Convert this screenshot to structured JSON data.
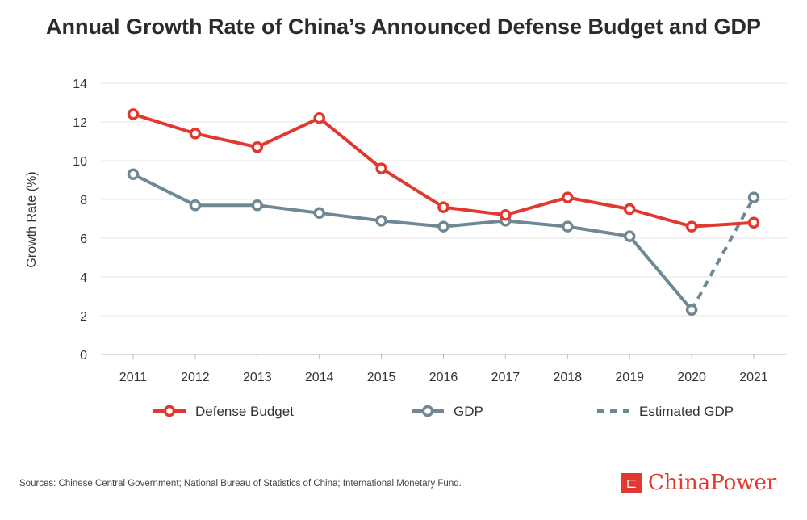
{
  "chart_data": {
    "type": "line",
    "title": "Annual Growth Rate of China’s Announced Defense Budget and GDP",
    "ylabel": "Growth Rate (%)",
    "xlabel": "",
    "ylim": [
      0,
      14
    ],
    "yticks": [
      0,
      2,
      4,
      6,
      8,
      10,
      12,
      14
    ],
    "grid": true,
    "legend": "bottom",
    "categories": [
      "2011",
      "2012",
      "2013",
      "2014",
      "2015",
      "2016",
      "2017",
      "2018",
      "2019",
      "2020",
      "2021"
    ],
    "series": [
      {
        "name": "Defense Budget",
        "color": "#e0392f",
        "values": [
          12.4,
          11.4,
          10.7,
          12.2,
          9.6,
          7.6,
          7.2,
          8.1,
          7.5,
          6.6,
          6.8
        ]
      },
      {
        "name": "GDP",
        "color": "#6f8893",
        "values": [
          9.3,
          7.7,
          7.7,
          7.3,
          6.9,
          6.6,
          6.9,
          6.6,
          6.1,
          2.3,
          null
        ]
      },
      {
        "name": "Estimated GDP",
        "color": "#6f8893",
        "dashed": true,
        "values": [
          null,
          null,
          null,
          null,
          null,
          null,
          null,
          null,
          null,
          2.3,
          8.1
        ]
      }
    ]
  },
  "source": "Sources: Chinese Central Government; National Bureau of Statistics of China; International Monetary Fund.",
  "logo": {
    "text": "ChinaPower",
    "mark": "CP"
  }
}
